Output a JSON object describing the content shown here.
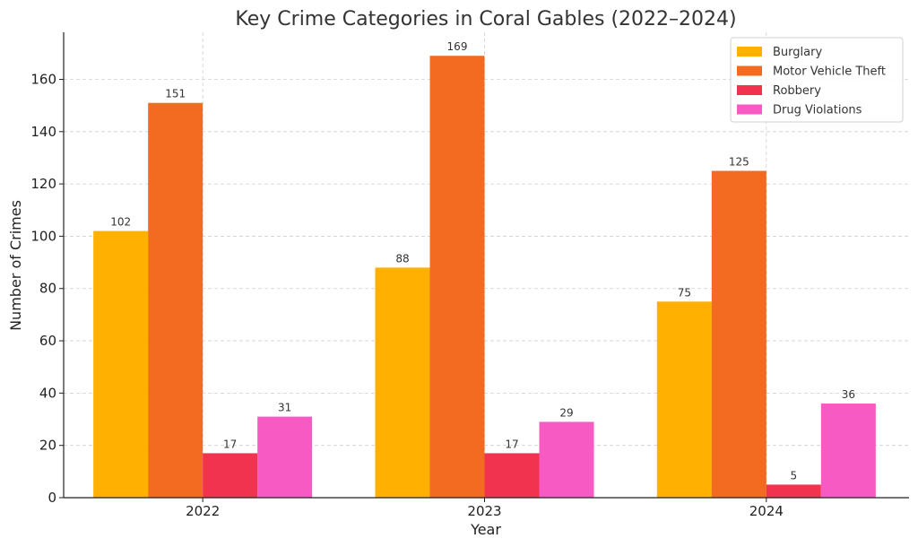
{
  "chart_data": {
    "type": "bar",
    "title": "Key Crime Categories in Coral Gables (2022–2024)",
    "xlabel": "Year",
    "ylabel": "Number of Crimes",
    "categories": [
      "2022",
      "2023",
      "2024"
    ],
    "ylim": [
      0,
      178
    ],
    "yticks": [
      0,
      20,
      40,
      60,
      80,
      100,
      120,
      140,
      160
    ],
    "grid": true,
    "legend_position": "top-right",
    "series": [
      {
        "name": "Burglary",
        "color": "#FFB000",
        "values": [
          102,
          88,
          75
        ]
      },
      {
        "name": "Motor Vehicle Theft",
        "color": "#F26B21",
        "values": [
          151,
          169,
          125
        ]
      },
      {
        "name": "Robbery",
        "color": "#F2334F",
        "values": [
          17,
          17,
          5
        ]
      },
      {
        "name": "Drug Violations",
        "color": "#F75AC2",
        "values": [
          31,
          29,
          36
        ]
      }
    ]
  }
}
